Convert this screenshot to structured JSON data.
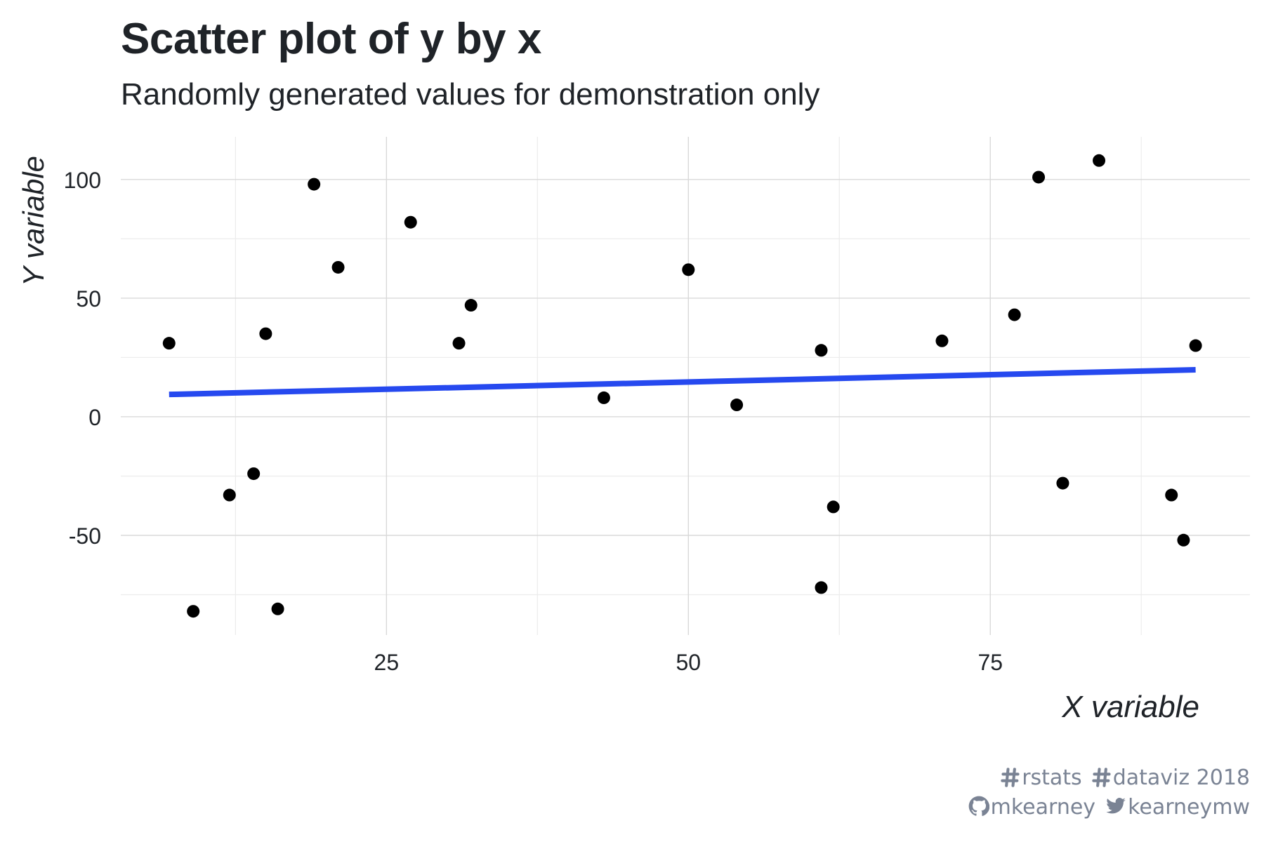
{
  "title": "Scatter plot of y by x",
  "subtitle": "Randomly generated values for demonstration only",
  "chart_data": {
    "type": "scatter",
    "title": "Scatter plot of y by x",
    "subtitle": "Randomly generated values for demonstration only",
    "xlabel": "X variable",
    "ylabel": "Y variable",
    "xlim": [
      3,
      96.5
    ],
    "ylim": [
      -92,
      118
    ],
    "x_ticks": [
      25,
      50,
      75
    ],
    "x_tick_labels": [
      "25",
      "50",
      "75"
    ],
    "x_minor_ticks": [
      12.5,
      37.5,
      62.5,
      87.5
    ],
    "y_ticks": [
      -50,
      0,
      50,
      100
    ],
    "y_tick_labels": [
      "-50",
      "0",
      "50",
      "100"
    ],
    "y_minor_ticks": [
      -75,
      -25,
      25,
      75
    ],
    "grid": true,
    "legend": "none",
    "points_color": "#000000",
    "trend_color": "#2649ef",
    "grid_color": "#d9d9d9",
    "text_color": "#1f2328",
    "caption_color": "#7a8394",
    "series": [
      {
        "x": [
          7,
          9,
          12,
          14,
          15,
          16,
          19,
          21,
          27,
          31,
          32,
          43,
          50,
          54,
          61,
          61,
          62,
          71,
          77,
          79,
          81,
          84,
          90,
          91,
          92
        ],
        "y": [
          31,
          -82,
          -33,
          -24,
          35,
          -81,
          98,
          63,
          82,
          31,
          47,
          8,
          62,
          5,
          28,
          -72,
          -38,
          32,
          43,
          101,
          -28,
          108,
          -33,
          -52,
          30
        ]
      }
    ],
    "trend_line": {
      "type": "linear",
      "x": [
        7,
        92
      ],
      "y": [
        9.4,
        19.8
      ]
    }
  },
  "caption": {
    "line1": [
      {
        "icon": "hashtag-icon",
        "text": "rstats"
      },
      {
        "icon": "hashtag-icon",
        "text": "dataviz 2018"
      }
    ],
    "line2": [
      {
        "icon": "github-icon",
        "text": "mkearney"
      },
      {
        "icon": "twitter-icon",
        "text": "kearneymw"
      }
    ]
  }
}
